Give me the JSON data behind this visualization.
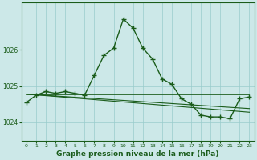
{
  "bg_color": "#cce8e8",
  "grid_color": "#99cccc",
  "line_color": "#1a5c1a",
  "xlabel": "Graphe pression niveau de la mer (hPa)",
  "xlim": [
    -0.5,
    23.5
  ],
  "ylim": [
    1023.5,
    1027.3
  ],
  "yticks": [
    1024,
    1025,
    1026
  ],
  "xticks": [
    0,
    1,
    2,
    3,
    4,
    5,
    6,
    7,
    8,
    9,
    10,
    11,
    12,
    13,
    14,
    15,
    16,
    17,
    18,
    19,
    20,
    21,
    22,
    23
  ],
  "series": [
    {
      "x": [
        0,
        1,
        2,
        3,
        4,
        5,
        6,
        7,
        8,
        9,
        10,
        11,
        12,
        13,
        14,
        15,
        16,
        17,
        18,
        19,
        20,
        21,
        22,
        23
      ],
      "y": [
        1024.55,
        1024.75,
        1024.85,
        1024.8,
        1024.85,
        1024.8,
        1024.75,
        1025.3,
        1025.85,
        1026.05,
        1026.85,
        1026.6,
        1026.05,
        1025.75,
        1025.2,
        1025.05,
        1024.65,
        1024.5,
        1024.2,
        1024.15,
        1024.15,
        1024.1,
        1024.65,
        1024.7
      ],
      "marker": "+",
      "lw": 1.0,
      "ms": 4
    },
    {
      "x": [
        0,
        23
      ],
      "y": [
        1024.78,
        1024.78
      ],
      "marker": null,
      "lw": 1.2,
      "ms": 0
    },
    {
      "x": [
        0,
        23
      ],
      "y": [
        1024.78,
        1024.38
      ],
      "marker": null,
      "lw": 0.8,
      "ms": 0
    },
    {
      "x": [
        0,
        23
      ],
      "y": [
        1024.78,
        1024.28
      ],
      "marker": null,
      "lw": 0.8,
      "ms": 0
    }
  ],
  "figsize": [
    3.2,
    2.0
  ],
  "dpi": 100
}
